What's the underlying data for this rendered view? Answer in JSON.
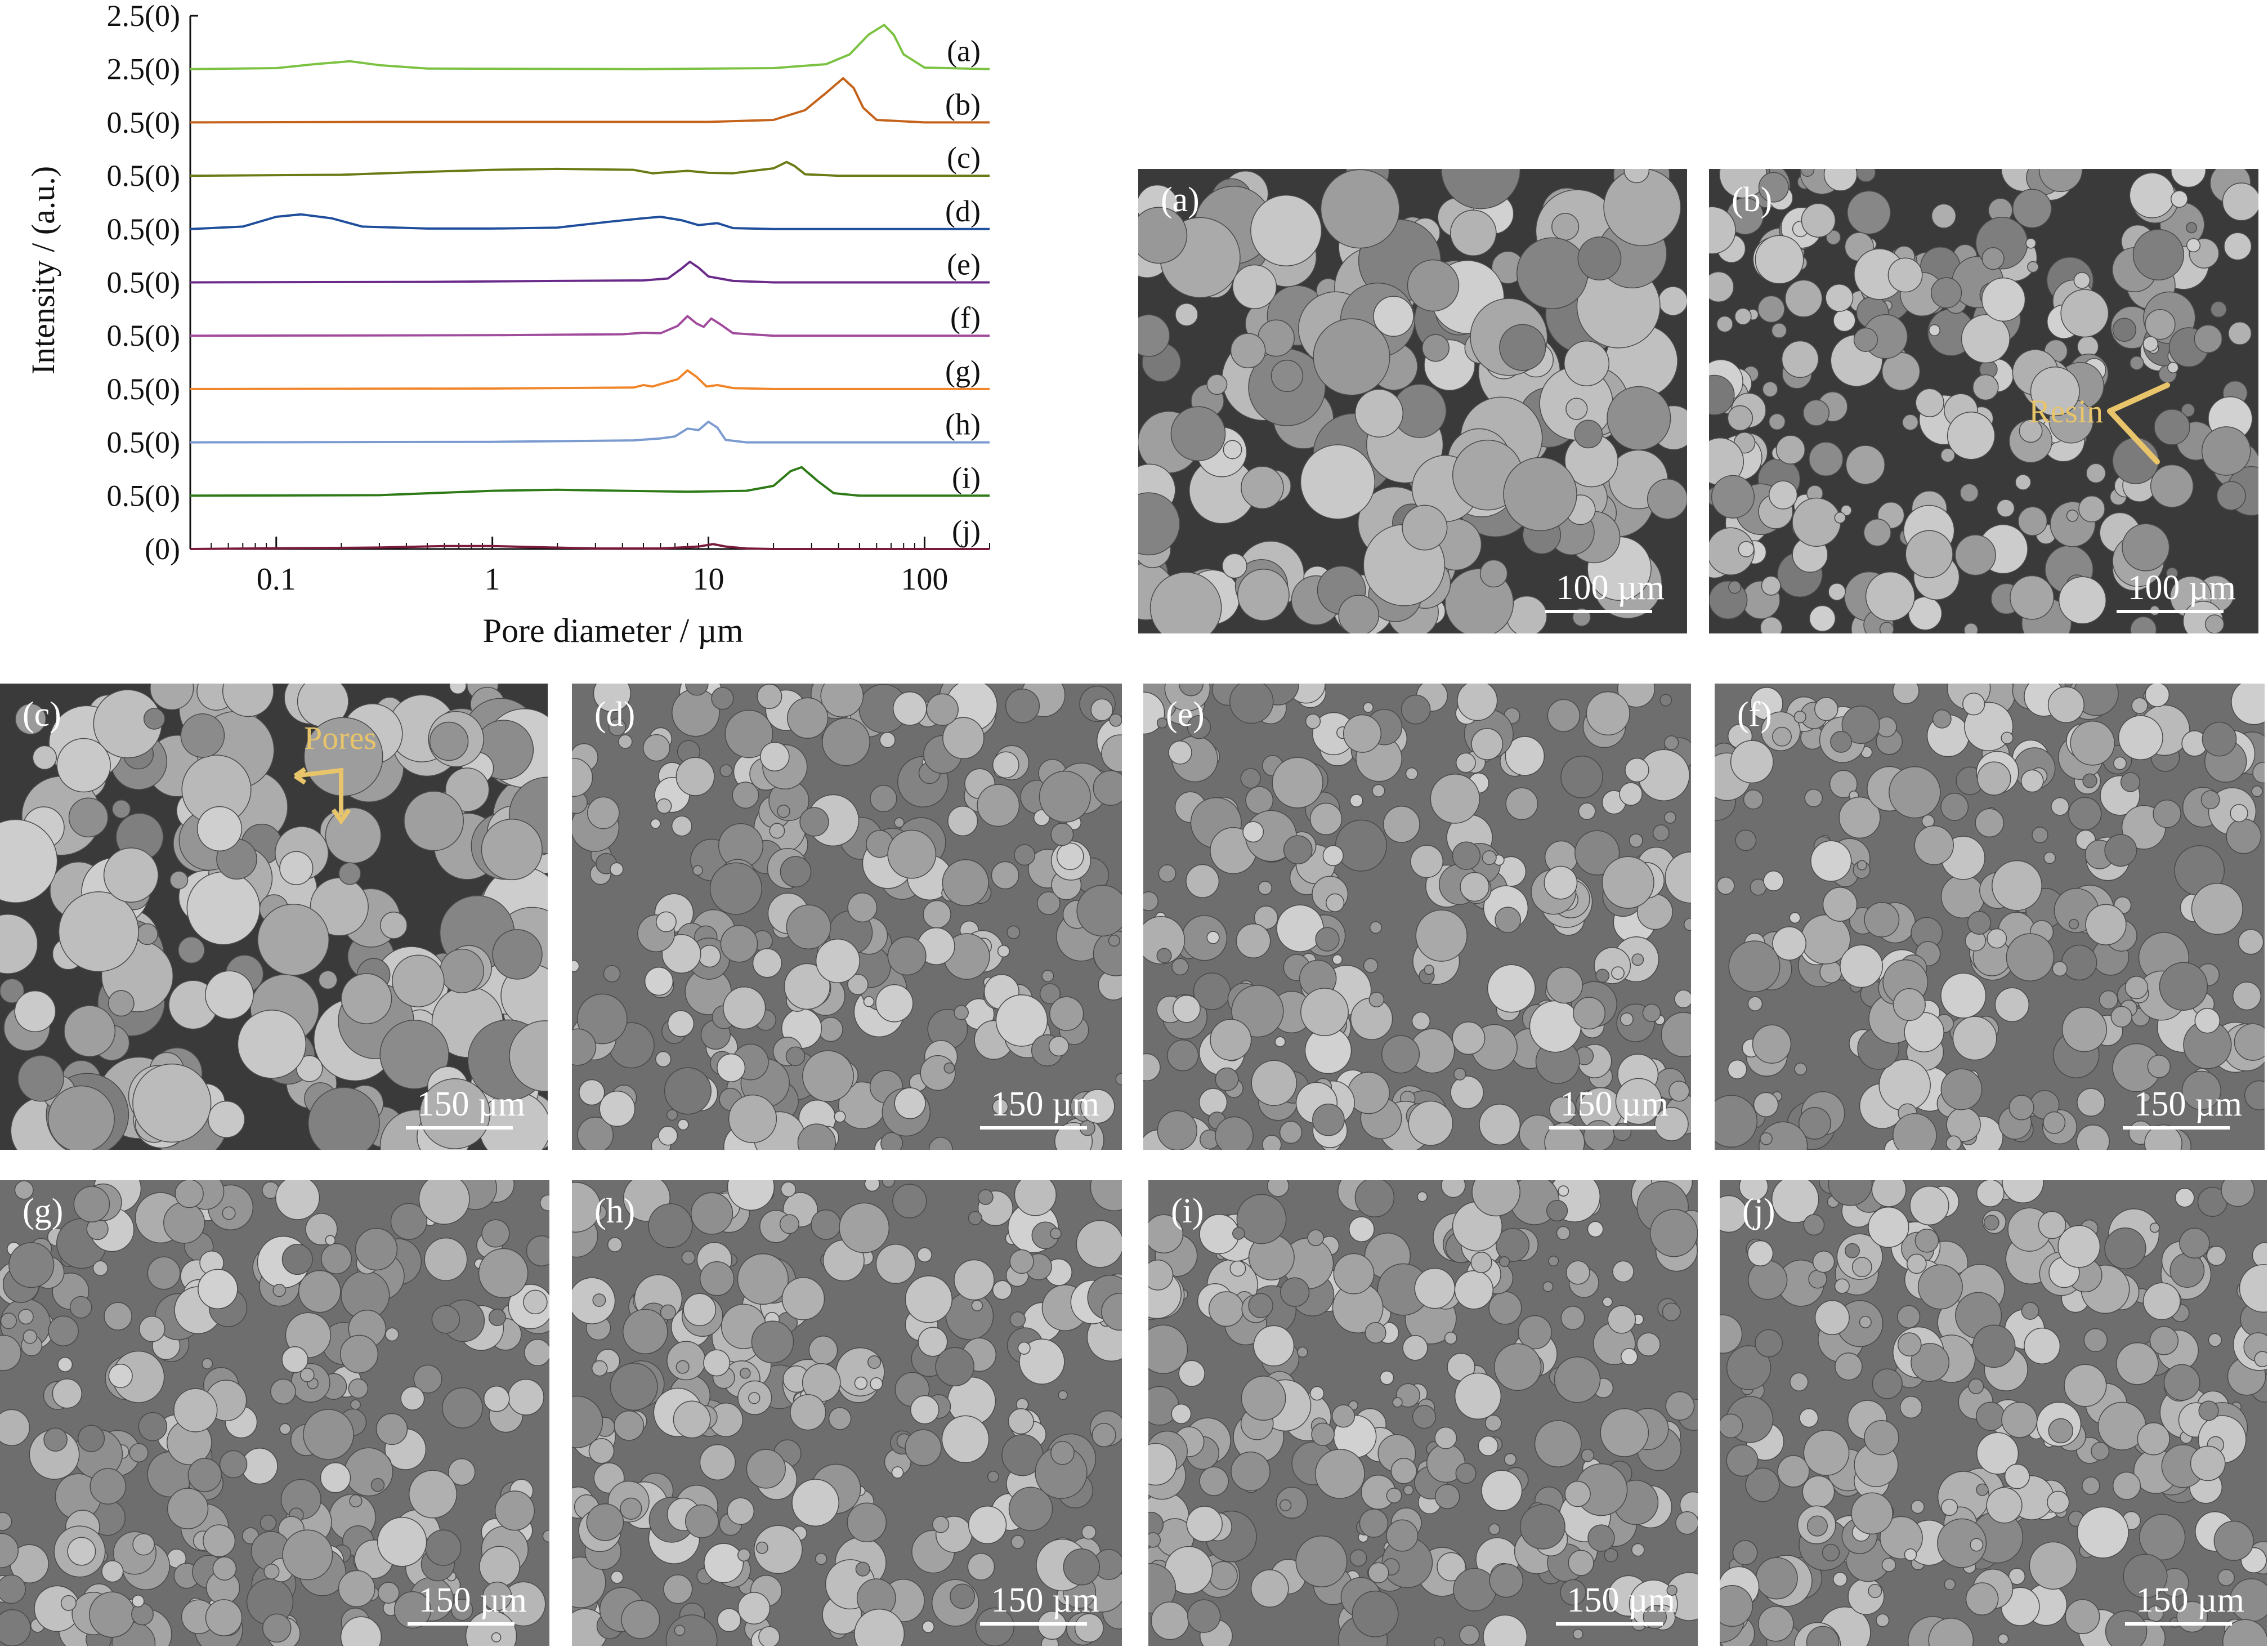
{
  "chart_data": {
    "type": "line",
    "xlabel": "Pore diameter / µm",
    "ylabel": "Intensity / (a.u.)",
    "x_scale": "log",
    "xlim": [
      0.04,
      200
    ],
    "x_ticks": [
      "0.1",
      "1",
      "10",
      "100"
    ],
    "y_tick_labels": [
      "2.5(0)",
      "2.5(0)",
      "0.5(0)",
      "0.5(0)",
      "0.5(0)",
      "0.5(0)",
      "0.5(0)",
      "0.5(0)",
      "0.5(0)",
      "0.5(0)",
      "(0)"
    ],
    "colors": [
      "#7cc242",
      "#c4621a",
      "#6b7a14",
      "#1f4e9c",
      "#6a2a8a",
      "#a04b9c",
      "#f0852a",
      "#7a9ad0",
      "#2d7a16",
      "#7a1a3a"
    ],
    "series": [
      {
        "name": "(a)",
        "points": [
          [
            0.04,
            0
          ],
          [
            0.1,
            0.02
          ],
          [
            0.15,
            0.1
          ],
          [
            0.22,
            0.16
          ],
          [
            0.3,
            0.08
          ],
          [
            0.5,
            0.01
          ],
          [
            5,
            0
          ],
          [
            20,
            0.02
          ],
          [
            35,
            0.1
          ],
          [
            45,
            0.3
          ],
          [
            55,
            0.7
          ],
          [
            65,
            0.9
          ],
          [
            72,
            0.7
          ],
          [
            80,
            0.3
          ],
          [
            100,
            0.03
          ],
          [
            200,
            0
          ]
        ]
      },
      {
        "name": "(b)",
        "points": [
          [
            0.04,
            0
          ],
          [
            0.3,
            0.01
          ],
          [
            1,
            0.01
          ],
          [
            10,
            0.01
          ],
          [
            20,
            0.05
          ],
          [
            28,
            0.25
          ],
          [
            35,
            0.6
          ],
          [
            42,
            0.9
          ],
          [
            47,
            0.7
          ],
          [
            52,
            0.3
          ],
          [
            60,
            0.05
          ],
          [
            100,
            0
          ],
          [
            200,
            0
          ]
        ]
      },
      {
        "name": "(c)",
        "points": [
          [
            0.04,
            0
          ],
          [
            0.2,
            0.02
          ],
          [
            0.5,
            0.08
          ],
          [
            1,
            0.12
          ],
          [
            2,
            0.14
          ],
          [
            3,
            0.13
          ],
          [
            4.5,
            0.12
          ],
          [
            5.5,
            0.05
          ],
          [
            8,
            0.1
          ],
          [
            10,
            0.06
          ],
          [
            13,
            0.05
          ],
          [
            16,
            0.1
          ],
          [
            20,
            0.15
          ],
          [
            23,
            0.28
          ],
          [
            25,
            0.2
          ],
          [
            28,
            0.03
          ],
          [
            40,
            0
          ],
          [
            200,
            0
          ]
        ]
      },
      {
        "name": "(d)",
        "points": [
          [
            0.04,
            0
          ],
          [
            0.07,
            0.05
          ],
          [
            0.1,
            0.25
          ],
          [
            0.13,
            0.3
          ],
          [
            0.18,
            0.22
          ],
          [
            0.25,
            0.05
          ],
          [
            0.5,
            0.01
          ],
          [
            1,
            0.01
          ],
          [
            2,
            0.03
          ],
          [
            3.5,
            0.15
          ],
          [
            5,
            0.22
          ],
          [
            6,
            0.25
          ],
          [
            7.5,
            0.18
          ],
          [
            9,
            0.08
          ],
          [
            11,
            0.12
          ],
          [
            13,
            0.02
          ],
          [
            20,
            0
          ],
          [
            200,
            0
          ]
        ]
      },
      {
        "name": "(e)",
        "points": [
          [
            0.04,
            0
          ],
          [
            0.5,
            0.01
          ],
          [
            2,
            0.03
          ],
          [
            5,
            0.04
          ],
          [
            6.5,
            0.08
          ],
          [
            7.5,
            0.28
          ],
          [
            8.2,
            0.42
          ],
          [
            9,
            0.3
          ],
          [
            10,
            0.12
          ],
          [
            13,
            0.03
          ],
          [
            20,
            0
          ],
          [
            200,
            0
          ]
        ]
      },
      {
        "name": "(f)",
        "points": [
          [
            0.04,
            0
          ],
          [
            1,
            0.01
          ],
          [
            4,
            0.03
          ],
          [
            5,
            0.06
          ],
          [
            6,
            0.05
          ],
          [
            7.2,
            0.2
          ],
          [
            8,
            0.4
          ],
          [
            8.8,
            0.25
          ],
          [
            9.5,
            0.18
          ],
          [
            10.3,
            0.35
          ],
          [
            11.2,
            0.25
          ],
          [
            13,
            0.05
          ],
          [
            20,
            0
          ],
          [
            200,
            0
          ]
        ]
      },
      {
        "name": "(g)",
        "points": [
          [
            0.04,
            0
          ],
          [
            1,
            0.01
          ],
          [
            4.5,
            0.03
          ],
          [
            5,
            0.08
          ],
          [
            5.5,
            0.05
          ],
          [
            6,
            0.1
          ],
          [
            7.2,
            0.2
          ],
          [
            8,
            0.38
          ],
          [
            8.8,
            0.25
          ],
          [
            9.8,
            0.05
          ],
          [
            11,
            0.08
          ],
          [
            13,
            0.02
          ],
          [
            20,
            0
          ],
          [
            200,
            0
          ]
        ]
      },
      {
        "name": "(h)",
        "points": [
          [
            0.04,
            0
          ],
          [
            1,
            0.01
          ],
          [
            4.5,
            0.04
          ],
          [
            6,
            0.08
          ],
          [
            7,
            0.12
          ],
          [
            8,
            0.28
          ],
          [
            9,
            0.25
          ],
          [
            10,
            0.42
          ],
          [
            11,
            0.3
          ],
          [
            12,
            0.05
          ],
          [
            15,
            0
          ],
          [
            200,
            0
          ]
        ]
      },
      {
        "name": "(i)",
        "points": [
          [
            0.04,
            0
          ],
          [
            0.3,
            0.01
          ],
          [
            1,
            0.1
          ],
          [
            2,
            0.12
          ],
          [
            4,
            0.1
          ],
          [
            8,
            0.08
          ],
          [
            15,
            0.1
          ],
          [
            20,
            0.2
          ],
          [
            24,
            0.5
          ],
          [
            27,
            0.58
          ],
          [
            32,
            0.3
          ],
          [
            38,
            0.05
          ],
          [
            50,
            0
          ],
          [
            200,
            0
          ]
        ]
      },
      {
        "name": "(j)",
        "points": [
          [
            0.04,
            0
          ],
          [
            0.3,
            0.03
          ],
          [
            0.6,
            0.06
          ],
          [
            1,
            0.06
          ],
          [
            1.5,
            0.04
          ],
          [
            3,
            0.01
          ],
          [
            6,
            0.01
          ],
          [
            9,
            0.05
          ],
          [
            10.5,
            0.1
          ],
          [
            12,
            0.05
          ],
          [
            15,
            0.01
          ],
          [
            20,
            0
          ],
          [
            200,
            0
          ]
        ]
      }
    ]
  },
  "sem_panels": [
    {
      "letter": "(a)",
      "scale": "100 µm"
    },
    {
      "letter": "(b)",
      "scale": "100 µm"
    },
    {
      "letter": "(c)",
      "scale": "150 µm"
    },
    {
      "letter": "(d)",
      "scale": "150 µm"
    },
    {
      "letter": "(e)",
      "scale": "150 µm"
    },
    {
      "letter": "(f)",
      "scale": "150 µm"
    },
    {
      "letter": "(g)",
      "scale": "150 µm"
    },
    {
      "letter": "(h)",
      "scale": "150 µm"
    },
    {
      "letter": "(i)",
      "scale": "150 µm"
    },
    {
      "letter": "(j)",
      "scale": "150 µm"
    }
  ],
  "annotations": {
    "resin": "Resin",
    "pores": "Pores"
  }
}
